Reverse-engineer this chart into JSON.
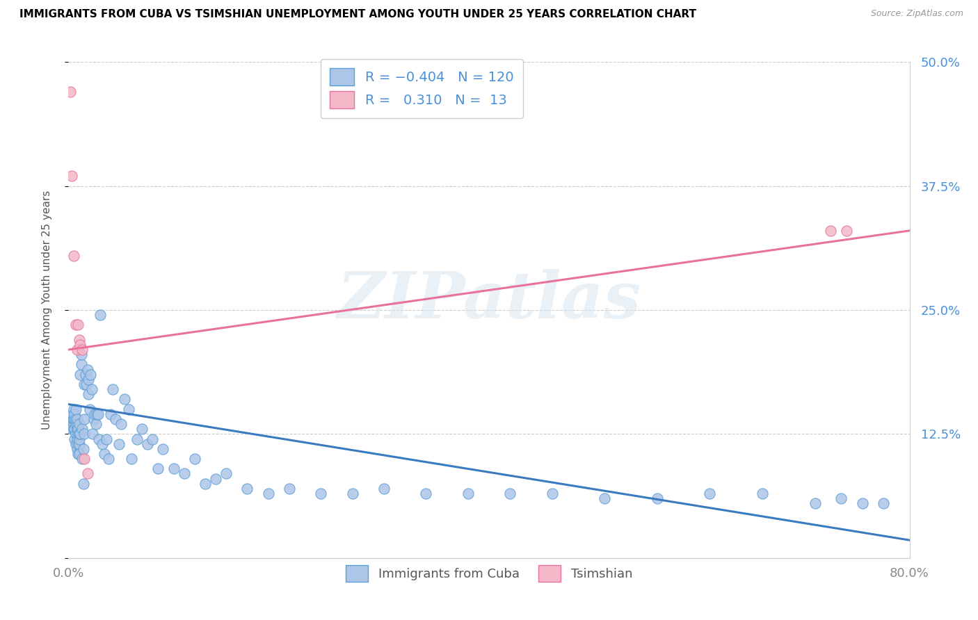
{
  "title": "IMMIGRANTS FROM CUBA VS TSIMSHIAN UNEMPLOYMENT AMONG YOUTH UNDER 25 YEARS CORRELATION CHART",
  "source": "Source: ZipAtlas.com",
  "ylabel": "Unemployment Among Youth under 25 years",
  "xmin": 0.0,
  "xmax": 0.8,
  "ymin": 0.0,
  "ymax": 0.5,
  "yticks": [
    0.0,
    0.125,
    0.25,
    0.375,
    0.5
  ],
  "ytick_labels_right": [
    "",
    "12.5%",
    "25.0%",
    "37.5%",
    "50.0%"
  ],
  "blue_color": "#aec6e8",
  "blue_edge_color": "#5a9fd4",
  "pink_color": "#f4b8c8",
  "pink_edge_color": "#e8729a",
  "blue_line_color": "#3a7abf",
  "pink_line_color": "#e8729a",
  "r_value_color": "#4a90d9",
  "watermark": "ZIPatlas",
  "blue_line_y_start": 0.155,
  "blue_line_y_end": 0.018,
  "pink_line_y_start": 0.21,
  "pink_line_y_end": 0.33,
  "blue_scatter_x": [
    0.002,
    0.003,
    0.004,
    0.004,
    0.005,
    0.005,
    0.005,
    0.005,
    0.006,
    0.006,
    0.006,
    0.006,
    0.007,
    0.007,
    0.007,
    0.007,
    0.007,
    0.008,
    0.008,
    0.008,
    0.008,
    0.008,
    0.009,
    0.009,
    0.009,
    0.009,
    0.01,
    0.01,
    0.01,
    0.01,
    0.01,
    0.011,
    0.011,
    0.012,
    0.012,
    0.013,
    0.013,
    0.014,
    0.014,
    0.015,
    0.015,
    0.015,
    0.016,
    0.017,
    0.018,
    0.019,
    0.019,
    0.02,
    0.021,
    0.022,
    0.023,
    0.024,
    0.025,
    0.026,
    0.027,
    0.028,
    0.029,
    0.03,
    0.032,
    0.034,
    0.036,
    0.038,
    0.04,
    0.042,
    0.045,
    0.048,
    0.05,
    0.053,
    0.057,
    0.06,
    0.065,
    0.07,
    0.075,
    0.08,
    0.085,
    0.09,
    0.1,
    0.11,
    0.12,
    0.13,
    0.14,
    0.15,
    0.17,
    0.19,
    0.21,
    0.24,
    0.27,
    0.3,
    0.34,
    0.38,
    0.42,
    0.46,
    0.51,
    0.56,
    0.61,
    0.66,
    0.71,
    0.735,
    0.755,
    0.775
  ],
  "blue_scatter_y": [
    0.135,
    0.13,
    0.14,
    0.145,
    0.13,
    0.135,
    0.14,
    0.15,
    0.12,
    0.13,
    0.14,
    0.145,
    0.115,
    0.125,
    0.135,
    0.14,
    0.15,
    0.11,
    0.12,
    0.13,
    0.135,
    0.14,
    0.105,
    0.115,
    0.125,
    0.13,
    0.105,
    0.115,
    0.12,
    0.125,
    0.135,
    0.125,
    0.185,
    0.195,
    0.205,
    0.13,
    0.1,
    0.075,
    0.11,
    0.125,
    0.14,
    0.175,
    0.185,
    0.175,
    0.19,
    0.165,
    0.18,
    0.15,
    0.185,
    0.17,
    0.125,
    0.14,
    0.145,
    0.135,
    0.145,
    0.145,
    0.12,
    0.245,
    0.115,
    0.105,
    0.12,
    0.1,
    0.145,
    0.17,
    0.14,
    0.115,
    0.135,
    0.16,
    0.15,
    0.1,
    0.12,
    0.13,
    0.115,
    0.12,
    0.09,
    0.11,
    0.09,
    0.085,
    0.1,
    0.075,
    0.08,
    0.085,
    0.07,
    0.065,
    0.07,
    0.065,
    0.065,
    0.07,
    0.065,
    0.065,
    0.065,
    0.065,
    0.06,
    0.06,
    0.065,
    0.065,
    0.055,
    0.06,
    0.055,
    0.055
  ],
  "pink_scatter_x": [
    0.002,
    0.003,
    0.005,
    0.007,
    0.008,
    0.009,
    0.01,
    0.011,
    0.013,
    0.015,
    0.018,
    0.725,
    0.74
  ],
  "pink_scatter_y": [
    0.47,
    0.385,
    0.305,
    0.235,
    0.21,
    0.235,
    0.22,
    0.215,
    0.21,
    0.1,
    0.085,
    0.33,
    0.33
  ]
}
